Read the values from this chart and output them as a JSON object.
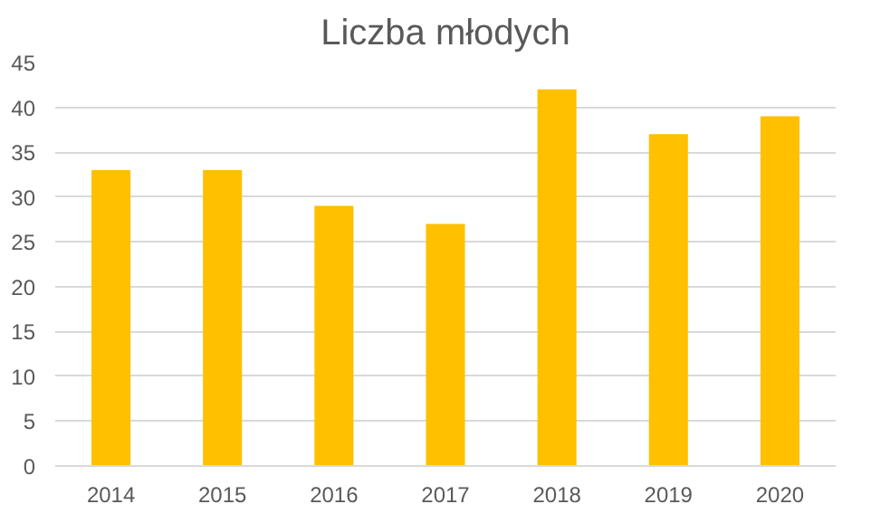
{
  "chart_data": {
    "type": "bar",
    "title": "Liczba młodych",
    "categories": [
      "2014",
      "2015",
      "2016",
      "2017",
      "2018",
      "2019",
      "2020"
    ],
    "values": [
      33,
      33,
      29,
      27,
      42,
      37,
      39
    ],
    "color": "#ffc000",
    "ylim": [
      0,
      45
    ],
    "yticks": [
      0,
      5,
      10,
      15,
      20,
      25,
      30,
      35,
      40,
      45
    ],
    "grid": "y"
  }
}
